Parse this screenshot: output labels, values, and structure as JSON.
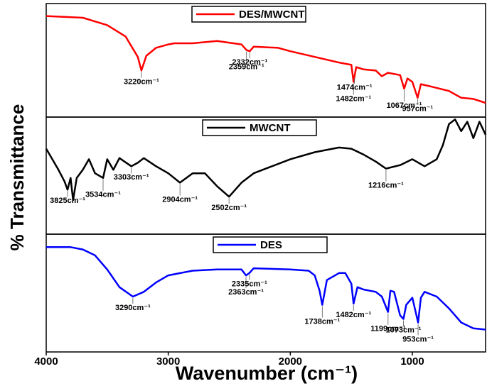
{
  "xlabel": "Wavenumber (cm⁻¹)",
  "ylabel": "% Transmittance",
  "xlim": [
    4000,
    400
  ],
  "xticks": [
    4000,
    3000,
    2000,
    1000
  ],
  "chart_data": [
    {
      "type": "line",
      "ylim": [
        0,
        100
      ],
      "x": [
        4000,
        3700,
        3500,
        3350,
        3250,
        3220,
        3180,
        3100,
        3000,
        2950,
        2800,
        2600,
        2400,
        2359,
        2332,
        2300,
        2100,
        2000,
        1800,
        1600,
        1500,
        1482,
        1460,
        1400,
        1300,
        1250,
        1200,
        1100,
        1067,
        1040,
        1000,
        957,
        930,
        850,
        700,
        600,
        500,
        400
      ],
      "series": [
        {
          "name": "DES/MWCNT",
          "color": "#ff0000",
          "values": [
            89,
            87.5,
            81,
            71,
            53,
            41,
            54,
            61,
            64,
            65,
            65,
            67,
            64,
            59,
            58,
            62,
            61,
            58,
            53,
            48,
            46,
            31,
            44,
            42,
            41,
            36,
            39,
            37,
            25,
            34,
            31,
            17,
            29,
            27,
            23,
            17,
            16,
            12.5
          ]
        }
      ],
      "annotations": [
        {
          "text": "3220cm⁻¹",
          "x": 3220
        },
        {
          "text": "2359cm⁻¹",
          "x": 2359
        },
        {
          "text": "2332cm⁻¹",
          "x": 2332
        },
        {
          "text": "1482cm⁻¹",
          "x": 1482
        },
        {
          "text": "1474cm⁻¹",
          "x": 1474
        },
        {
          "text": "1067cm⁻¹",
          "x": 1067
        },
        {
          "text": "957cm⁻¹",
          "x": 957
        }
      ]
    },
    {
      "type": "line",
      "ylim": [
        0,
        100
      ],
      "x": [
        4000,
        3900,
        3850,
        3825,
        3800,
        3780,
        3750,
        3700,
        3650,
        3600,
        3534,
        3500,
        3450,
        3400,
        3303,
        3250,
        3200,
        3100,
        3000,
        2904,
        2800,
        2700,
        2600,
        2502,
        2400,
        2300,
        2200,
        2000,
        1800,
        1600,
        1500,
        1400,
        1300,
        1216,
        1100,
        1000,
        900,
        800,
        750,
        700,
        650,
        600,
        550,
        500,
        450,
        400
      ],
      "series": [
        {
          "name": "MWCNT",
          "color": "#000000",
          "values": [
            73,
            55,
            45,
            38,
            48,
            29,
            48,
            55,
            64,
            52,
            48,
            64,
            55,
            65,
            58,
            61,
            65,
            58,
            52,
            44,
            52,
            52,
            41,
            32,
            44,
            52,
            56,
            64,
            70,
            74,
            73,
            68,
            62,
            56,
            59,
            64,
            58,
            64,
            76,
            94,
            98,
            88,
            96,
            82,
            96,
            85
          ]
        }
      ],
      "annotations": [
        {
          "text": "3825cm⁻¹",
          "x": 3825
        },
        {
          "text": "3534cm⁻¹",
          "x": 3534
        },
        {
          "text": "3303cm⁻¹",
          "x": 3303
        },
        {
          "text": "2904cm⁻¹",
          "x": 2904
        },
        {
          "text": "2502cm⁻¹",
          "x": 2502
        },
        {
          "text": "1216cm⁻¹",
          "x": 1216
        }
      ]
    },
    {
      "type": "line",
      "ylim": [
        0,
        100
      ],
      "x": [
        4000,
        3800,
        3700,
        3600,
        3500,
        3400,
        3290,
        3200,
        3100,
        3000,
        2800,
        2600,
        2400,
        2363,
        2335,
        2300,
        2000,
        1850,
        1800,
        1760,
        1738,
        1700,
        1600,
        1550,
        1500,
        1482,
        1450,
        1400,
        1300,
        1250,
        1199,
        1180,
        1150,
        1100,
        1073,
        1050,
        1000,
        953,
        930,
        900,
        800,
        700,
        600,
        500,
        400
      ],
      "series": [
        {
          "name": "DES",
          "color": "#0000ff",
          "values": [
            89,
            89,
            87,
            82,
            70,
            55,
            47,
            51,
            59,
            65,
            69,
            70,
            70,
            65,
            67,
            71,
            70,
            69,
            65,
            52,
            40,
            61,
            67,
            67,
            58,
            41,
            55,
            53,
            51,
            47,
            34,
            52,
            51,
            31,
            28,
            40,
            46,
            25,
            46,
            51,
            47,
            37,
            25,
            20,
            19
          ]
        }
      ],
      "annotations": [
        {
          "text": "3290cm⁻¹",
          "x": 3290
        },
        {
          "text": "2363cm⁻¹",
          "x": 2363
        },
        {
          "text": "2335cm⁻¹",
          "x": 2335
        },
        {
          "text": "1738cm⁻¹",
          "x": 1738
        },
        {
          "text": "1482cm⁻¹",
          "x": 1482
        },
        {
          "text": "1199cm⁻¹",
          "x": 1199
        },
        {
          "text": "1073cm⁻¹",
          "x": 1073
        },
        {
          "text": "953cm⁻¹",
          "x": 953
        }
      ]
    }
  ]
}
